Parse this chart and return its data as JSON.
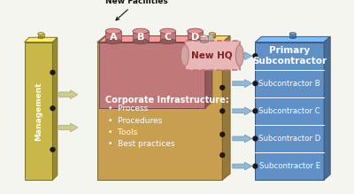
{
  "bg_color": "#f5f5f0",
  "mgmt_color": "#c8b84a",
  "mgmt_dark": "#9a8c30",
  "mgmt_light": "#e0d878",
  "mgmt_label": "Management",
  "corp_color": "#c8a050",
  "corp_dark": "#9a7c30",
  "corp_light": "#e0c070",
  "corp_label": "Corporate Infrastructure:",
  "corp_bullets": [
    "Process",
    "Procedures",
    "Tools",
    "Best practices"
  ],
  "fac_color": "#c07878",
  "fac_dark": "#904848",
  "fac_light": "#d89898",
  "fac_tabs": [
    "A",
    "B",
    "C",
    "D"
  ],
  "fac_label": "New Facilities",
  "newhq_fill": "#e8b8b8",
  "newhq_edge": "#c07878",
  "newhq_label": "New HQ",
  "pri_color": "#6090c8",
  "pri_dark": "#3868a0",
  "pri_light": "#88b0e0",
  "pri_label": "Primary\nSubcontractor",
  "sub_labels": [
    "Subcontractor B",
    "Subcontractor C",
    "Subcontractor D",
    "Subcontractor E"
  ],
  "arrow_mgmt": "#d0cc90",
  "arrow_corp": "#90b8d8",
  "arrow_newhq": "#c0c8c0",
  "plug_dark": "#222222",
  "white": "#ffffff"
}
